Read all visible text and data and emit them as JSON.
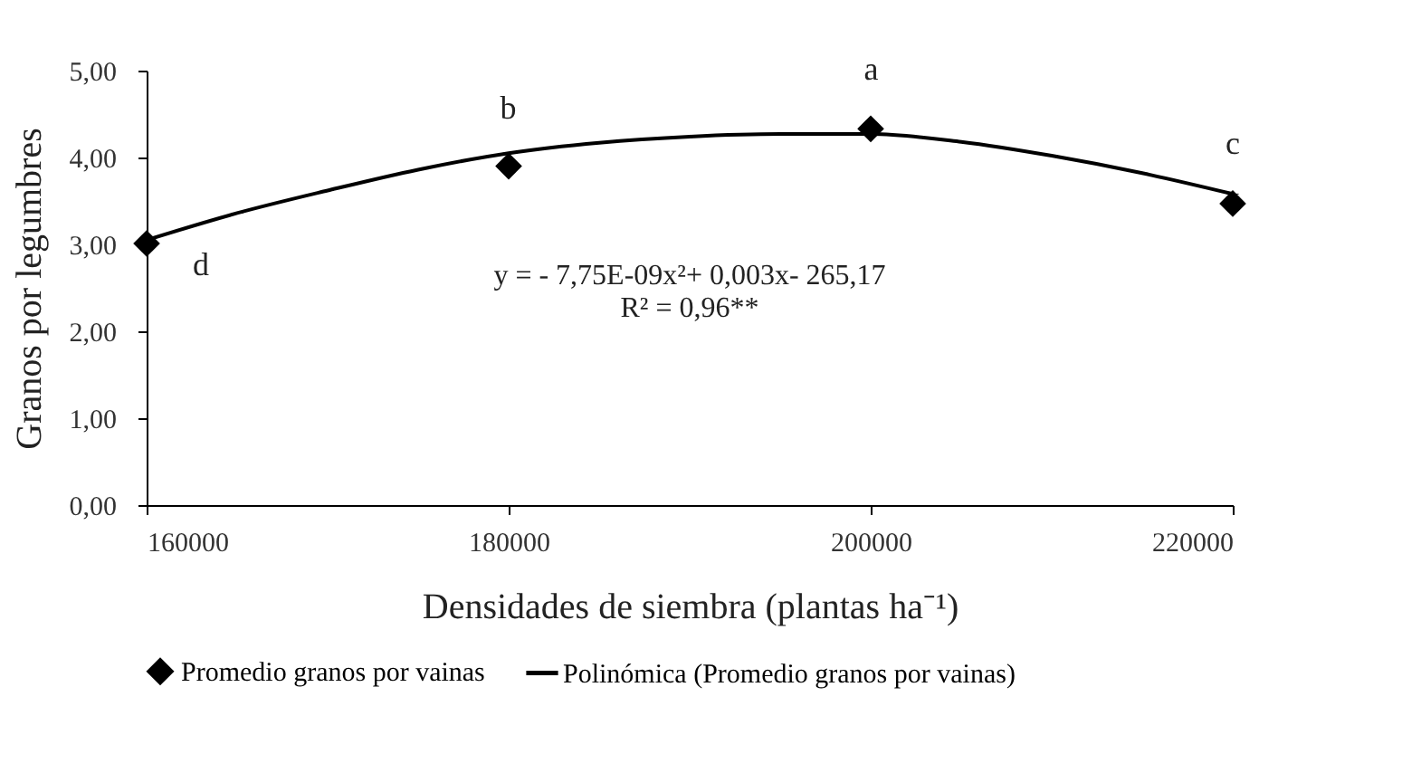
{
  "chart_data": {
    "type": "scatter",
    "xlabel": "Densidades de siembra (plantas ha⁻¹)",
    "ylabel": "Granos por legumbres",
    "xlim": [
      160000,
      220000
    ],
    "xticks": [
      160000,
      180000,
      200000,
      220000
    ],
    "ylim": [
      0,
      5
    ],
    "yticks": [
      {
        "value": 0,
        "label": "0,00"
      },
      {
        "value": 1,
        "label": "1,00"
      },
      {
        "value": 2,
        "label": "2,00"
      },
      {
        "value": 3,
        "label": "3,00"
      },
      {
        "value": 4,
        "label": "4,00"
      },
      {
        "value": 5,
        "label": "5,00"
      }
    ],
    "series": [
      {
        "name": "Promedio granos por vainas",
        "marker": "diamond",
        "color": "#000000",
        "x": [
          160000,
          180000,
          200000,
          220000
        ],
        "values": [
          3.01,
          3.9,
          4.33,
          3.47
        ]
      },
      {
        "name": "Polinómica (Promedio granos por vainas)",
        "type": "line",
        "line_style": "solid",
        "color": "#000000",
        "x": [
          160000,
          165000,
          170000,
          175000,
          180000,
          185000,
          190000,
          195000,
          200000,
          205000,
          210000,
          215000,
          220000
        ],
        "values": [
          3.05,
          3.36,
          3.62,
          3.86,
          4.05,
          4.17,
          4.24,
          4.27,
          4.27,
          4.18,
          4.02,
          3.82,
          3.58
        ]
      }
    ],
    "annotations": [
      "d",
      "b",
      "a",
      "c",
      "y = - 7,75E-09x²+ 0,003x- 265,17",
      "R² = 0,96**"
    ],
    "legend": "bottom",
    "grid": false
  }
}
